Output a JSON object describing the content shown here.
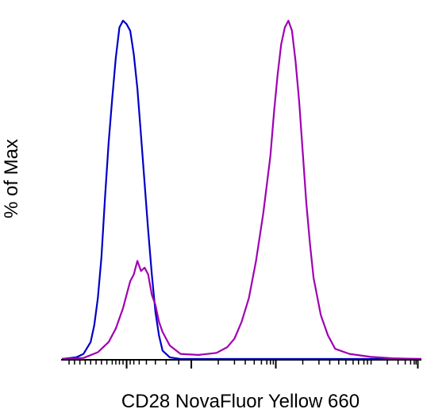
{
  "chart_data": {
    "type": "line",
    "title": "",
    "xlabel": "CD28 NovaFluor Yellow 660",
    "ylabel": "% of Max",
    "x_scale": "biexponential",
    "ylim": [
      0,
      100
    ],
    "grid": false,
    "legend": "none",
    "x_tick_labels": [],
    "y_tick_labels": [],
    "series": [
      {
        "color": "#0000c8",
        "points": [
          [
            0.0,
            0
          ],
          [
            0.04,
            0.5
          ],
          [
            0.06,
            1.5
          ],
          [
            0.08,
            5
          ],
          [
            0.09,
            10
          ],
          [
            0.1,
            18
          ],
          [
            0.11,
            30
          ],
          [
            0.12,
            48
          ],
          [
            0.13,
            64
          ],
          [
            0.14,
            77
          ],
          [
            0.15,
            89
          ],
          [
            0.16,
            98
          ],
          [
            0.17,
            100
          ],
          [
            0.18,
            99
          ],
          [
            0.19,
            97
          ],
          [
            0.2,
            90
          ],
          [
            0.21,
            80
          ],
          [
            0.22,
            66
          ],
          [
            0.23,
            52
          ],
          [
            0.24,
            38
          ],
          [
            0.25,
            25
          ],
          [
            0.26,
            14
          ],
          [
            0.27,
            7
          ],
          [
            0.28,
            2.5
          ],
          [
            0.3,
            0.5
          ],
          [
            0.33,
            0
          ],
          [
            1.0,
            0
          ]
        ]
      },
      {
        "color": "#a000b4",
        "points": [
          [
            0.0,
            0
          ],
          [
            0.06,
            0.3
          ],
          [
            0.1,
            2
          ],
          [
            0.13,
            5
          ],
          [
            0.15,
            9
          ],
          [
            0.17,
            15
          ],
          [
            0.18,
            19
          ],
          [
            0.19,
            23
          ],
          [
            0.2,
            25
          ],
          [
            0.21,
            29
          ],
          [
            0.22,
            26
          ],
          [
            0.23,
            27
          ],
          [
            0.24,
            25
          ],
          [
            0.25,
            19
          ],
          [
            0.26,
            16
          ],
          [
            0.27,
            11
          ],
          [
            0.28,
            8
          ],
          [
            0.3,
            4
          ],
          [
            0.33,
            1.5
          ],
          [
            0.38,
            1.2
          ],
          [
            0.43,
            1.8
          ],
          [
            0.46,
            3.5
          ],
          [
            0.48,
            6
          ],
          [
            0.5,
            11
          ],
          [
            0.52,
            18
          ],
          [
            0.54,
            29
          ],
          [
            0.56,
            43
          ],
          [
            0.58,
            60
          ],
          [
            0.59,
            73
          ],
          [
            0.6,
            84
          ],
          [
            0.61,
            93
          ],
          [
            0.62,
            98
          ],
          [
            0.63,
            100
          ],
          [
            0.64,
            97
          ],
          [
            0.65,
            88
          ],
          [
            0.66,
            76
          ],
          [
            0.67,
            61
          ],
          [
            0.68,
            46
          ],
          [
            0.69,
            34
          ],
          [
            0.7,
            24
          ],
          [
            0.72,
            13
          ],
          [
            0.74,
            7
          ],
          [
            0.76,
            3
          ],
          [
            0.8,
            1.5
          ],
          [
            0.86,
            0.6
          ],
          [
            0.92,
            0.2
          ],
          [
            1.0,
            0
          ]
        ]
      }
    ]
  }
}
